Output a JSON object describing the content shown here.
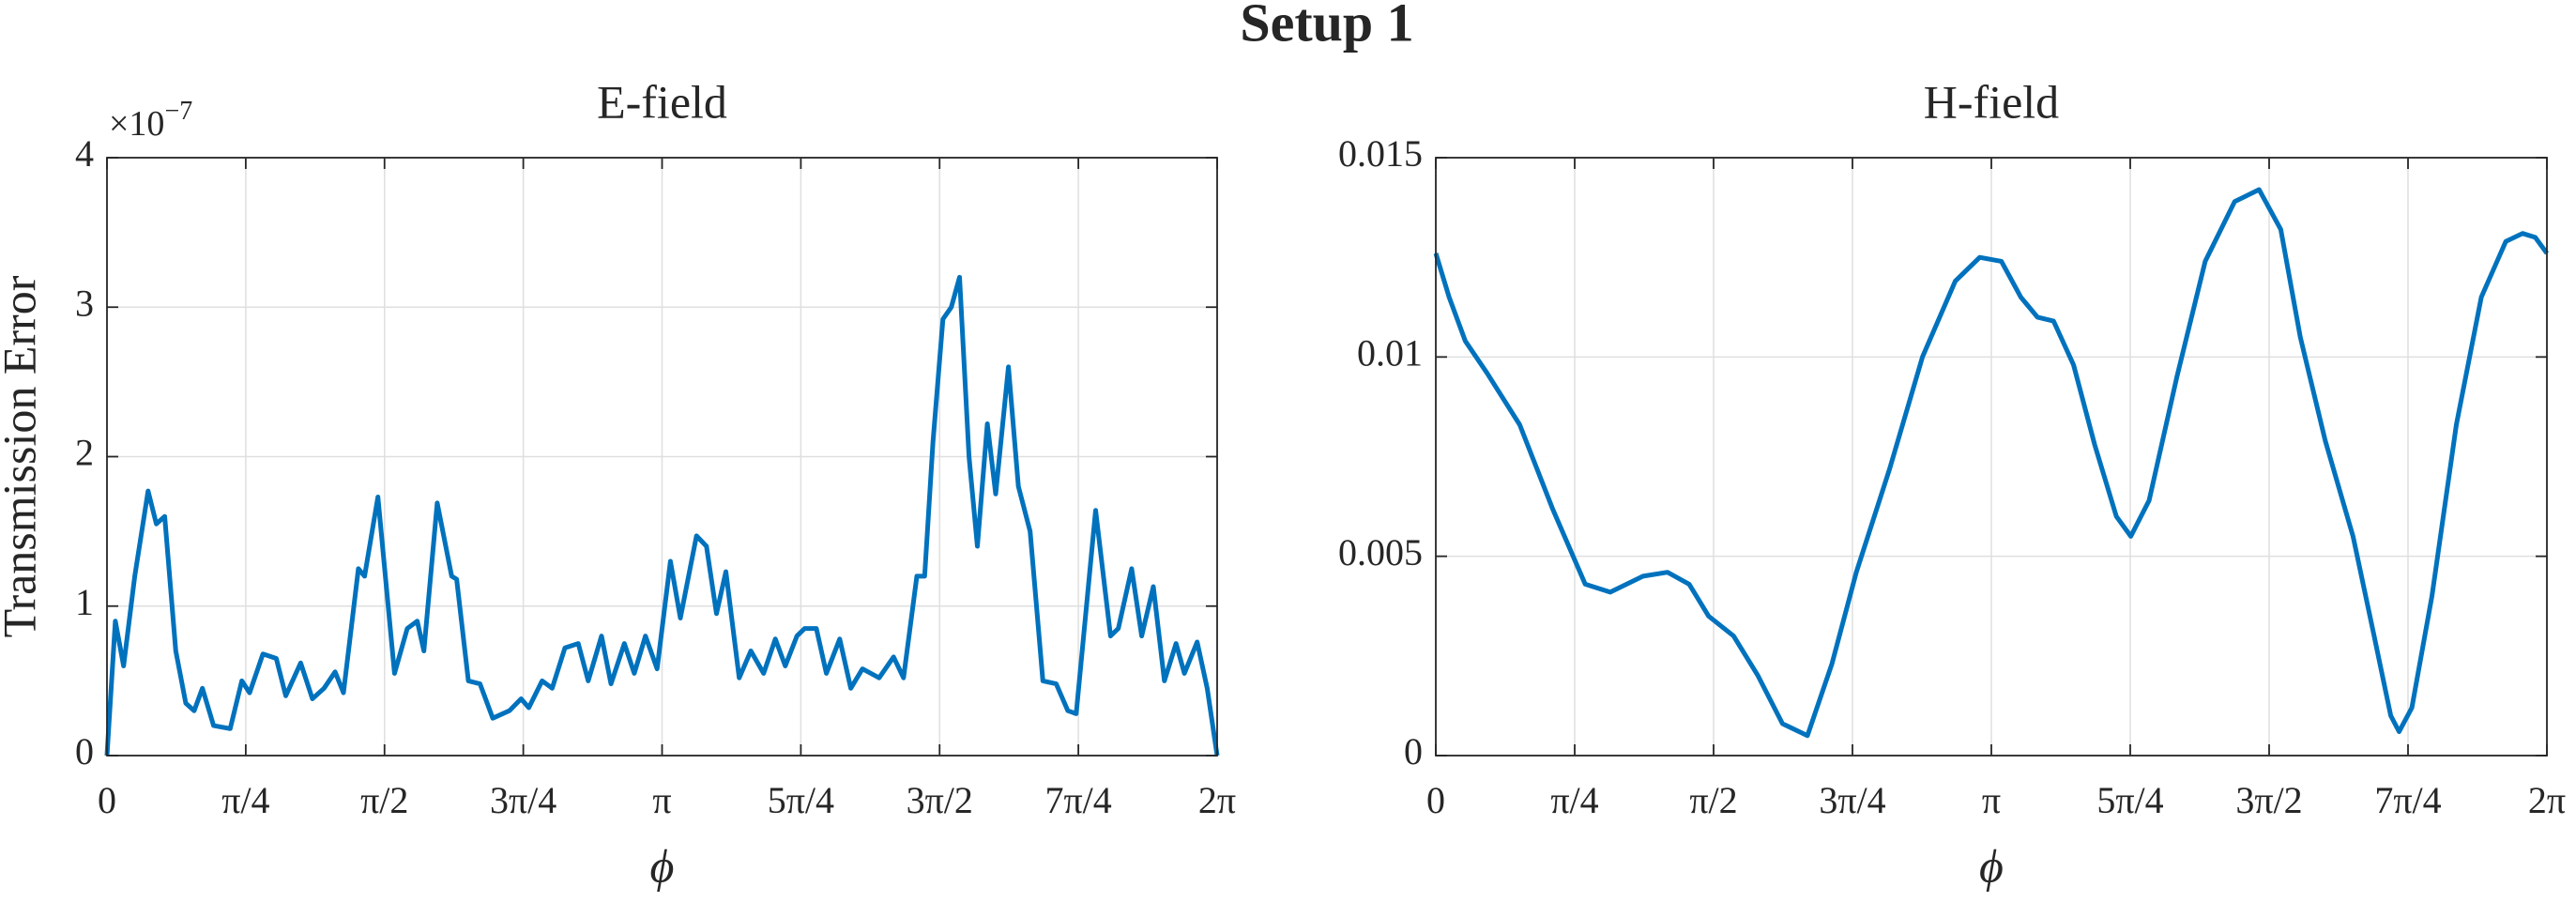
{
  "title": "Setup 1",
  "chart_data": [
    {
      "type": "line",
      "title": "E-field",
      "ylabel": "Transmission Error",
      "xlabel": "ϕ",
      "y_multiplier": {
        "base": "×10",
        "exponent": "−7"
      },
      "xlim": [
        0,
        2
      ],
      "ylim": [
        0,
        4
      ],
      "grid": true,
      "xticks": [
        0,
        {
          "value": 0.25,
          "label": "π/4"
        },
        {
          "value": 0.5,
          "label": "π/2"
        },
        {
          "value": 0.75,
          "label": "3π/4"
        },
        {
          "value": 1,
          "label": "π"
        },
        {
          "value": 1.25,
          "label": "5π/4"
        },
        {
          "value": 1.5,
          "label": "3π/2"
        },
        {
          "value": 1.75,
          "label": "7π/4"
        },
        {
          "value": 2,
          "label": "2π"
        }
      ],
      "yticks": [
        0,
        1,
        2,
        3,
        4
      ],
      "x": [
        0,
        0.015,
        0.03,
        0.05,
        0.074,
        0.089,
        0.104,
        0.124,
        0.142,
        0.157,
        0.172,
        0.192,
        0.222,
        0.243,
        0.257,
        0.281,
        0.305,
        0.322,
        0.349,
        0.37,
        0.391,
        0.411,
        0.426,
        0.453,
        0.464,
        0.488,
        0.518,
        0.541,
        0.559,
        0.571,
        0.595,
        0.621,
        0.63,
        0.651,
        0.672,
        0.695,
        0.725,
        0.746,
        0.76,
        0.784,
        0.802,
        0.825,
        0.849,
        0.867,
        0.891,
        0.908,
        0.932,
        0.95,
        0.97,
        0.991,
        1.015,
        1.033,
        1.062,
        1.08,
        1.098,
        1.115,
        1.139,
        1.16,
        1.183,
        1.204,
        1.222,
        1.243,
        1.257,
        1.278,
        1.296,
        1.32,
        1.34,
        1.361,
        1.391,
        1.417,
        1.435,
        1.459,
        1.473,
        1.488,
        1.506,
        1.521,
        1.536,
        1.553,
        1.568,
        1.586,
        1.601,
        1.624,
        1.642,
        1.663,
        1.686,
        1.71,
        1.731,
        1.746,
        1.781,
        1.808,
        1.822,
        1.846,
        1.864,
        1.885,
        1.905,
        1.926,
        1.941,
        1.964,
        1.982,
        2.0
      ],
      "series": [
        {
          "color": "#0072bd",
          "values": [
            0,
            0.9,
            0.6,
            1.2,
            1.77,
            1.55,
            1.6,
            0.7,
            0.35,
            0.3,
            0.45,
            0.2,
            0.18,
            0.5,
            0.42,
            0.68,
            0.65,
            0.4,
            0.62,
            0.38,
            0.45,
            0.56,
            0.42,
            1.25,
            1.2,
            1.73,
            0.55,
            0.85,
            0.9,
            0.7,
            1.69,
            1.2,
            1.18,
            0.5,
            0.48,
            0.25,
            0.3,
            0.38,
            0.32,
            0.5,
            0.45,
            0.72,
            0.75,
            0.5,
            0.8,
            0.48,
            0.75,
            0.55,
            0.8,
            0.58,
            1.3,
            0.92,
            1.47,
            1.4,
            0.95,
            1.23,
            0.52,
            0.7,
            0.55,
            0.78,
            0.6,
            0.8,
            0.85,
            0.85,
            0.55,
            0.78,
            0.45,
            0.58,
            0.52,
            0.66,
            0.52,
            1.2,
            1.2,
            2.1,
            2.92,
            3.0,
            3.2,
            2.0,
            1.4,
            2.22,
            1.75,
            2.6,
            1.8,
            1.5,
            0.5,
            0.48,
            0.3,
            0.28,
            1.64,
            0.8,
            0.85,
            1.25,
            0.8,
            1.13,
            0.5,
            0.75,
            0.55,
            0.76,
            0.45,
            0
          ]
        }
      ]
    },
    {
      "type": "line",
      "title": "H-field",
      "xlabel": "ϕ",
      "xlim": [
        0,
        2
      ],
      "ylim": [
        0,
        0.015
      ],
      "grid": true,
      "xticks": [
        0,
        {
          "value": 0.25,
          "label": "π/4"
        },
        {
          "value": 0.5,
          "label": "π/2"
        },
        {
          "value": 0.75,
          "label": "3π/4"
        },
        {
          "value": 1,
          "label": "π"
        },
        {
          "value": 1.25,
          "label": "5π/4"
        },
        {
          "value": 1.5,
          "label": "3π/2"
        },
        {
          "value": 1.75,
          "label": "7π/4"
        },
        {
          "value": 2,
          "label": "2π"
        }
      ],
      "yticks": [
        0,
        0.005,
        0.01,
        0.015
      ],
      "x": [
        0,
        0.024,
        0.053,
        0.092,
        0.151,
        0.21,
        0.269,
        0.314,
        0.373,
        0.417,
        0.456,
        0.491,
        0.536,
        0.58,
        0.624,
        0.669,
        0.713,
        0.757,
        0.817,
        0.876,
        0.935,
        0.979,
        1.018,
        1.053,
        1.083,
        1.112,
        1.148,
        1.186,
        1.225,
        1.251,
        1.284,
        1.334,
        1.385,
        1.438,
        1.482,
        1.521,
        1.556,
        1.601,
        1.651,
        1.689,
        1.719,
        1.734,
        1.757,
        1.793,
        1.837,
        1.882,
        1.926,
        1.956,
        1.979,
        2.0
      ],
      "series": [
        {
          "color": "#0072bd",
          "values": [
            0.0126,
            0.0115,
            0.0104,
            0.0096,
            0.0083,
            0.0062,
            0.0043,
            0.0041,
            0.0045,
            0.0046,
            0.0043,
            0.0035,
            0.003,
            0.002,
            0.0008,
            0.0005,
            0.0023,
            0.0046,
            0.0072,
            0.01,
            0.0119,
            0.0125,
            0.0124,
            0.0115,
            0.011,
            0.0109,
            0.0098,
            0.0078,
            0.006,
            0.0055,
            0.0064,
            0.0095,
            0.0124,
            0.0139,
            0.0142,
            0.0132,
            0.0105,
            0.0079,
            0.0055,
            0.003,
            0.001,
            0.0006,
            0.0012,
            0.004,
            0.0083,
            0.0115,
            0.0129,
            0.0131,
            0.013,
            0.0126
          ]
        }
      ]
    }
  ]
}
